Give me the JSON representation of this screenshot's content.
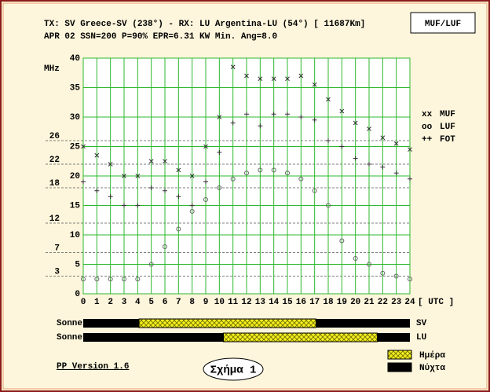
{
  "header": {
    "line1": "TX: SV Greece-SV (238°) - RX: LU Argentina-LU (54°) [ 11687Km]",
    "line2": "APR 02   SSN=200  P=90%  EPR=6.31 KW  Min. Ang=8.0",
    "box": "MUF/LUF"
  },
  "chart_data": {
    "type": "scatter",
    "y_label": "MHz",
    "x_label": "[ UTC ]",
    "x": [
      0,
      1,
      2,
      3,
      4,
      5,
      6,
      7,
      8,
      9,
      10,
      11,
      12,
      13,
      14,
      15,
      16,
      17,
      18,
      19,
      20,
      21,
      22,
      23,
      24
    ],
    "xlim": [
      0,
      24
    ],
    "xticks": [
      0,
      1,
      2,
      3,
      4,
      5,
      6,
      7,
      8,
      9,
      10,
      11,
      12,
      13,
      14,
      15,
      16,
      17,
      18,
      19,
      20,
      21,
      22,
      23,
      24
    ],
    "ylim": [
      0,
      40
    ],
    "yticks": [
      0,
      5,
      10,
      15,
      20,
      25,
      30,
      35,
      40
    ],
    "ref_lines": [
      3,
      7,
      12,
      18,
      22,
      26
    ],
    "grid": true,
    "grid_color": "#2db82d",
    "series": [
      {
        "name": "MUF",
        "marker": "xx",
        "color": "#333333",
        "values": [
          25,
          23.5,
          22,
          20,
          20,
          22.5,
          22.5,
          21,
          20,
          25,
          30,
          38.5,
          37,
          36.5,
          36.5,
          36.5,
          37,
          35.5,
          33,
          31,
          29,
          28,
          26.5,
          25.5,
          24.5
        ]
      },
      {
        "name": "LUF",
        "marker": "oo",
        "color": "#666666",
        "values": [
          2.5,
          2.5,
          2.5,
          2.5,
          2.5,
          5,
          8,
          11,
          14,
          16,
          18,
          19.5,
          20.5,
          21,
          21,
          20.5,
          19.5,
          17.5,
          15,
          9,
          6,
          5,
          3.5,
          3,
          2.5
        ]
      },
      {
        "name": "FOT",
        "marker": "++",
        "color": "#333333",
        "values": [
          19,
          17.5,
          16.5,
          15,
          15,
          18,
          17.5,
          16.5,
          15,
          19,
          24,
          29,
          30.5,
          28.5,
          30.5,
          30.5,
          30,
          29.5,
          26,
          25,
          23,
          22,
          21.5,
          20.5,
          19.5
        ]
      }
    ]
  },
  "sun": {
    "rows": [
      {
        "label": "Sonne",
        "name": "SV",
        "day": [
          4.1,
          17.1
        ]
      },
      {
        "label": "Sonne",
        "name": "LU",
        "day": [
          10.3,
          21.6
        ]
      }
    ],
    "legend": [
      "Ημέρα",
      "Νύχτα"
    ]
  },
  "footer": {
    "version": "PP Version 1.6",
    "figure": "Σχήμα 1"
  }
}
